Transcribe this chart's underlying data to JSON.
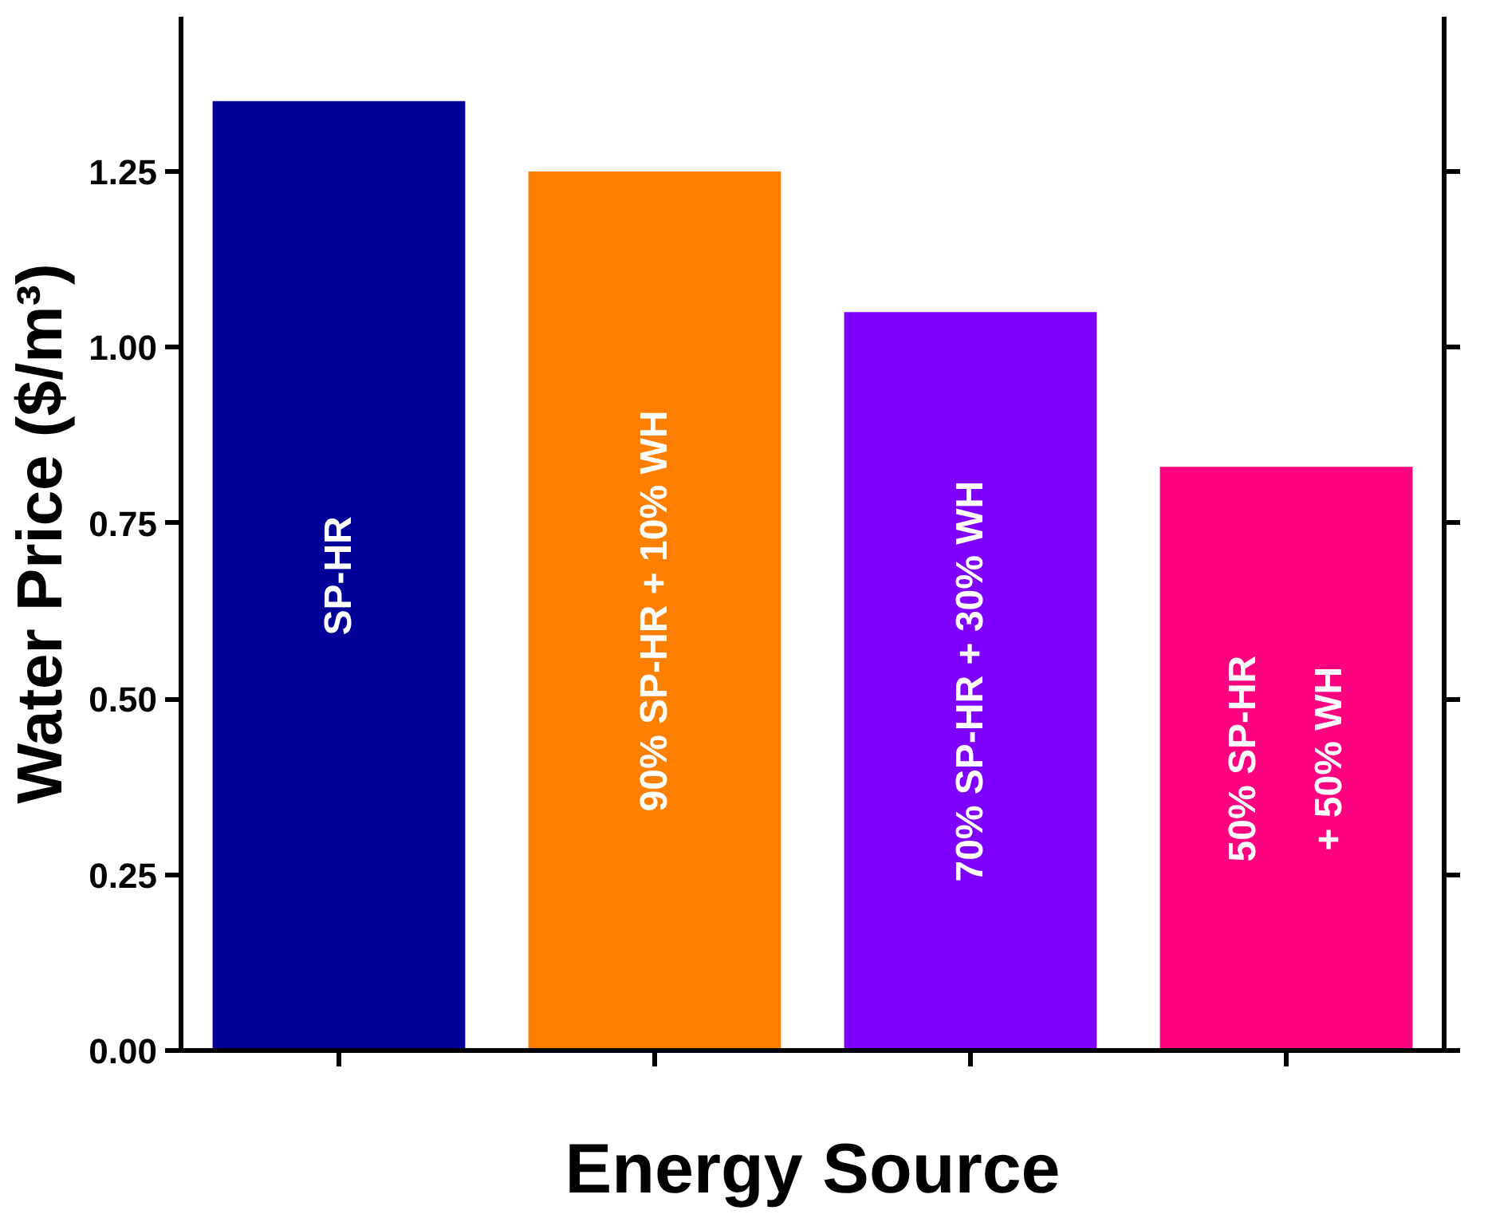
{
  "chart_data": {
    "type": "bar",
    "xlabel": "Energy Source",
    "ylabel": "Water Price ($/m³)",
    "categories": [
      "SP-HR",
      "90% SP-HR + 10% WH",
      "70% SP-HR + 30% WH",
      "50% SP-HR\n+ 50% WH"
    ],
    "values": [
      1.35,
      1.25,
      1.05,
      0.83
    ],
    "colors": [
      "#000099",
      "#ff8000",
      "#8000ff",
      "#ff0080"
    ],
    "ylim": [
      0,
      1.47
    ],
    "yticks": [
      {
        "value": 0,
        "label": "0.00"
      },
      {
        "value": 0.25,
        "label": "0.25"
      },
      {
        "value": 0.5,
        "label": "0.50"
      },
      {
        "value": 0.75,
        "label": "0.75"
      },
      {
        "value": 1.0,
        "label": "1.00"
      },
      {
        "value": 1.25,
        "label": "1.25"
      }
    ],
    "grid": false
  }
}
